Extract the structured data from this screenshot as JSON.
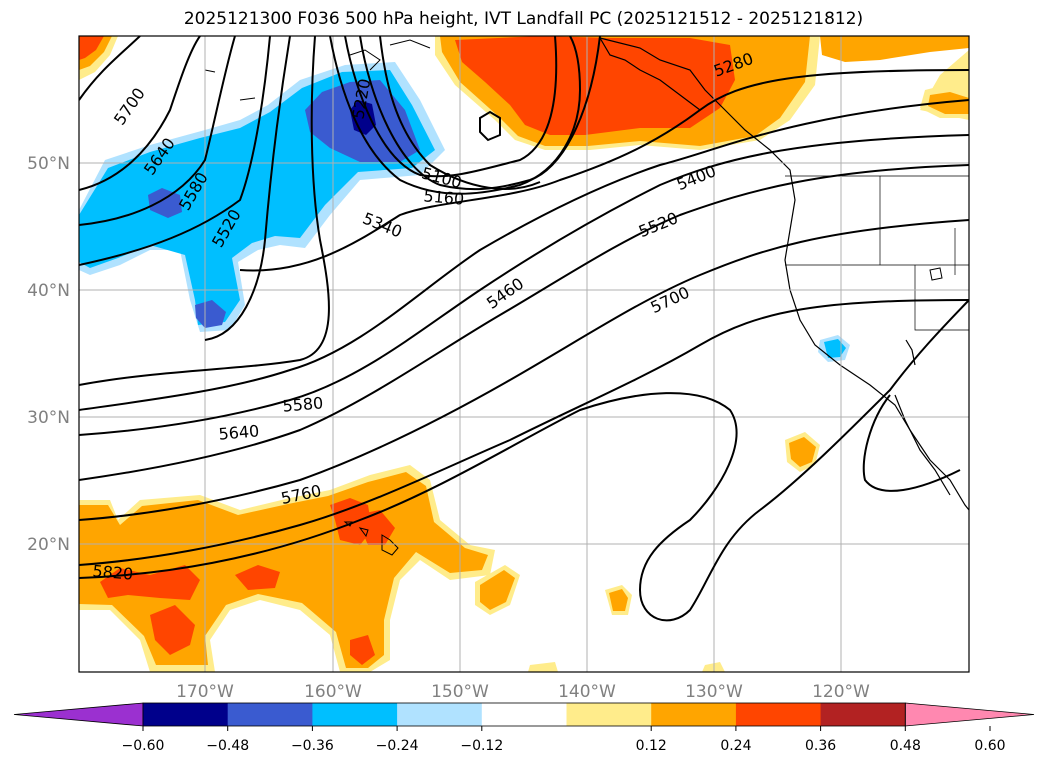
{
  "title": "2025121300 F036 500 hPa height, IVT Landfall PC (2025121512 - 2025121812)",
  "map": {
    "lon_labels": [
      "170°W",
      "160°W",
      "150°W",
      "140°W",
      "130°W",
      "120°W"
    ],
    "lat_labels": [
      "50°N",
      "40°N",
      "30°N",
      "20°N"
    ],
    "contour_labels": [
      "5700",
      "5640",
      "5580",
      "5520",
      "5220",
      "5100",
      "5160",
      "5340",
      "5460",
      "5400",
      "5520",
      "5700",
      "5280",
      "5580",
      "5640",
      "5760",
      "5820"
    ]
  },
  "colorbar": {
    "ticks": [
      "−0.60",
      "−0.48",
      "−0.36",
      "−0.24",
      "−0.12",
      "0.12",
      "0.24",
      "0.36",
      "0.48",
      "0.60"
    ],
    "colors": [
      "#9b30d0",
      "#00008b",
      "#3a5bd0",
      "#00bfff",
      "#b0e2ff",
      "#ffffff",
      "#ffec8b",
      "#ffa500",
      "#ff4500",
      "#b22222",
      "#ff88b0"
    ]
  }
}
